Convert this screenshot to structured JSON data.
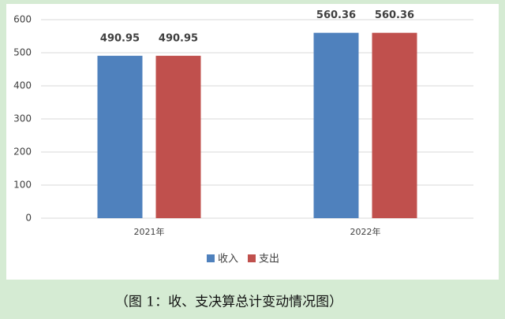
{
  "chart_data": {
    "type": "bar",
    "caption": "（图 1：收、支决算总计变动情况图）",
    "categories": [
      "2021年",
      "2022年"
    ],
    "series": [
      {
        "name": "收入",
        "color": "#4f81bd",
        "values": [
          490.95,
          560.36
        ]
      },
      {
        "name": "支出",
        "color": "#c0504d",
        "values": [
          490.95,
          560.36
        ]
      }
    ],
    "ylim": [
      0,
      600
    ],
    "yticks": [
      0,
      100,
      200,
      300,
      400,
      500,
      600
    ],
    "grid": true,
    "legend": "bottom"
  }
}
